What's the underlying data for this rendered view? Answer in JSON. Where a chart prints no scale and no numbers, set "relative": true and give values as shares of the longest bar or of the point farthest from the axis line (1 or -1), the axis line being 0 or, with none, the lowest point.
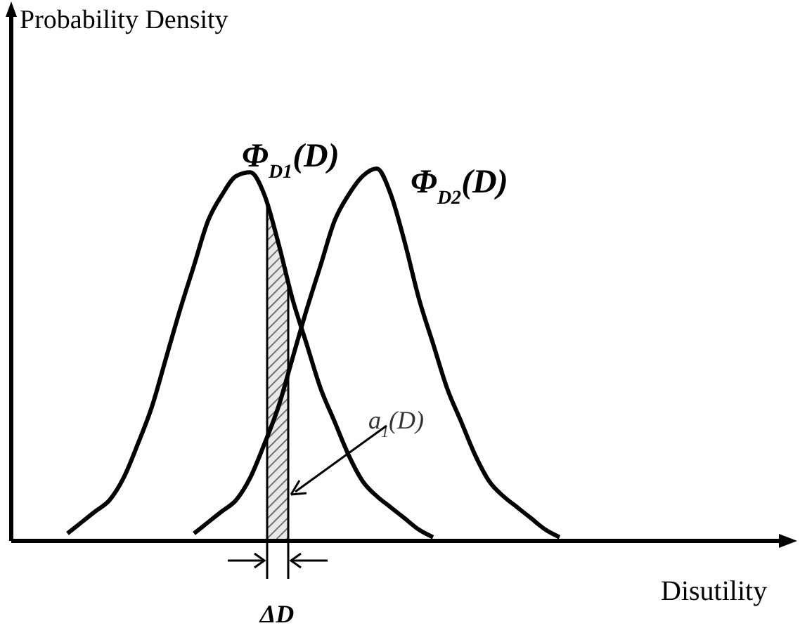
{
  "chart_data": {
    "type": "line",
    "relative": true,
    "xlabel": "Disutility",
    "ylabel": "Probability Density",
    "legend": false,
    "marker": "none",
    "line_style": "solid",
    "categories": [
      null,
      null,
      null,
      null,
      null,
      null,
      null,
      null,
      null,
      null,
      null,
      null,
      null,
      null,
      null,
      null,
      null,
      null,
      null,
      null,
      null,
      null,
      null,
      null,
      null,
      null,
      null,
      null,
      null,
      null,
      null,
      null,
      null,
      null,
      null,
      null,
      null,
      null,
      null,
      null,
      null,
      null,
      null,
      null,
      null,
      null,
      null,
      null,
      null,
      null,
      null,
      null,
      null,
      null,
      null,
      null,
      null
    ],
    "series": [
      {
        "name": "Φ$_{D1}$(D)",
        "color": "#000000",
        "values": [
          null,
          null,
          null,
          null,
          0.02,
          0.05,
          0.08,
          0.11,
          0.17,
          0.26,
          0.36,
          0.49,
          0.62,
          0.74,
          0.86,
          0.93,
          0.98,
          0.99,
          0.93,
          0.8,
          0.65,
          0.53,
          0.41,
          0.32,
          0.23,
          0.16,
          0.12,
          0.09,
          0.06,
          0.03,
          0.01,
          null,
          null,
          null,
          null,
          null,
          null,
          null,
          null,
          null,
          null,
          null,
          null,
          null,
          null,
          null,
          null,
          null,
          null,
          null,
          null,
          null,
          null,
          null,
          null,
          null,
          null
        ]
      },
      {
        "name": "Φ$_{D2}$(D)",
        "color": "#000000",
        "values": [
          null,
          null,
          null,
          null,
          null,
          null,
          null,
          null,
          null,
          null,
          null,
          null,
          null,
          0.02,
          0.05,
          0.08,
          0.11,
          0.17,
          0.26,
          0.36,
          0.49,
          0.62,
          0.74,
          0.86,
          0.93,
          0.98,
          1.0,
          0.93,
          0.8,
          0.65,
          0.53,
          0.41,
          0.32,
          0.23,
          0.16,
          0.12,
          0.09,
          0.06,
          0.03,
          0.01,
          null,
          null,
          null,
          null,
          null,
          null,
          null,
          null,
          null,
          null,
          null,
          null,
          null,
          null,
          null,
          null,
          null
        ]
      }
    ],
    "annotations": [
      "a$_{1}$(D)",
      "ΔD"
    ]
  }
}
